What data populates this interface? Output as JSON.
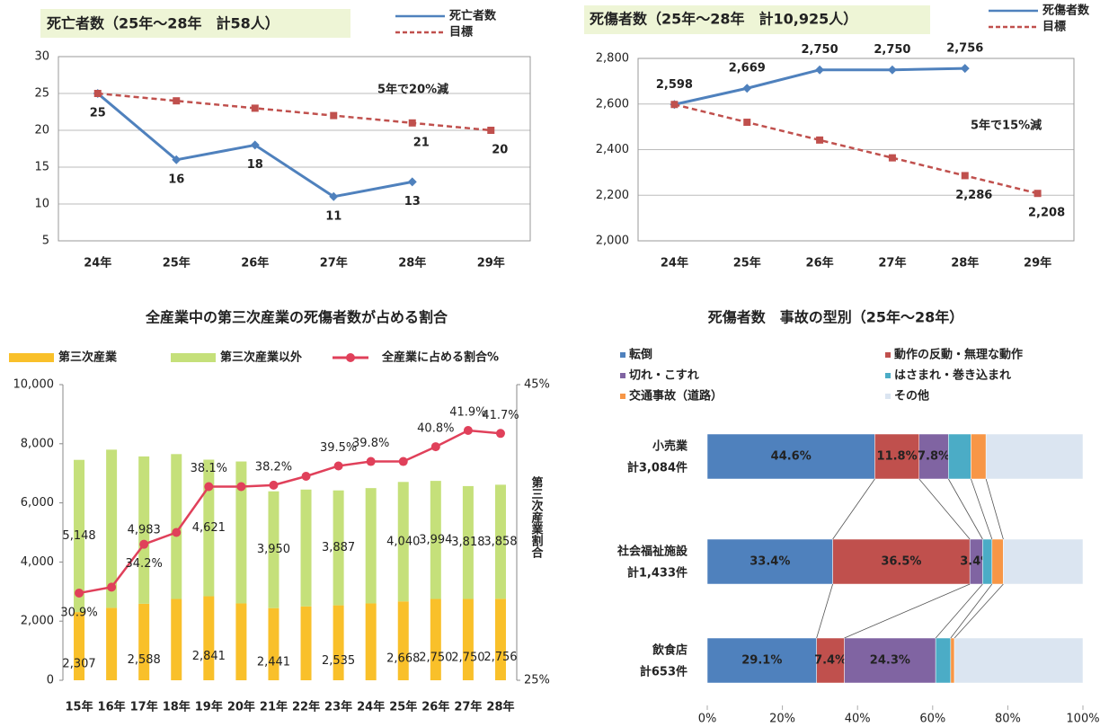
{
  "chart_data": [
    {
      "type": "line",
      "title": "死亡者数（25年～28年　計58人）",
      "categories": [
        "24年",
        "25年",
        "26年",
        "27年",
        "28年",
        "29年"
      ],
      "series": [
        {
          "name": "死亡者数",
          "color": "#4f81bd",
          "values": [
            25,
            16,
            18,
            11,
            13,
            null
          ]
        },
        {
          "name": "目標",
          "color": "#c0504d",
          "dashed": true,
          "values": [
            25,
            24,
            23,
            22,
            21,
            20
          ],
          "value_labels": [
            null,
            null,
            null,
            null,
            "21",
            "20"
          ]
        }
      ],
      "ylim": [
        5,
        30
      ],
      "yticks": [
        5,
        10,
        15,
        20,
        25,
        30
      ],
      "grid": true,
      "annotation": "5年で20%減"
    },
    {
      "type": "line",
      "title": "死傷者数（25年～28年　計10,925人）",
      "categories": [
        "24年",
        "25年",
        "26年",
        "27年",
        "28年",
        "29年"
      ],
      "series": [
        {
          "name": "死傷者数",
          "color": "#4f81bd",
          "values": [
            2598,
            2669,
            2750,
            2750,
            2756,
            null
          ],
          "value_labels": [
            "2,598",
            "2,669",
            "2,750",
            "2,750",
            "2,756",
            null
          ]
        },
        {
          "name": "目標",
          "color": "#c0504d",
          "dashed": true,
          "values": [
            2598,
            2520,
            2442,
            2364,
            2286,
            2208
          ],
          "value_labels": [
            null,
            null,
            null,
            null,
            "2,286",
            "2,208"
          ]
        }
      ],
      "ylim": [
        2000,
        2800
      ],
      "yticks": [
        {
          "value": 2000,
          "label": "2,000"
        },
        {
          "value": 2200,
          "label": "2,200"
        },
        {
          "value": 2400,
          "label": "2,400"
        },
        {
          "value": 2600,
          "label": "2,600"
        },
        {
          "value": 2800,
          "label": "2,800"
        }
      ],
      "grid": true,
      "annotation": "5年で15%減"
    },
    {
      "type": "combo",
      "title": "全産業中の第三次産業の死傷者数が占める割合",
      "categories": [
        "15年",
        "16年",
        "17年",
        "18年",
        "19年",
        "20年",
        "21年",
        "22年",
        "23年",
        "24年",
        "25年",
        "26年",
        "27年",
        "28年"
      ],
      "series": [
        {
          "name": "第三次産業",
          "color": "#f9c02a",
          "values": [
            2307,
            2450,
            2588,
            2750,
            2841,
            2600,
            2441,
            2500,
            2535,
            2600,
            2668,
            2750,
            2750,
            2756
          ],
          "value_labels": [
            "2,307",
            null,
            "2,588",
            null,
            "2,841",
            null,
            "2,441",
            null,
            "2,535",
            null,
            "2,668",
            "2,750",
            "2,750",
            "2,756"
          ]
        },
        {
          "name": "第三次産業以外",
          "color": "#c5e07a",
          "values": [
            5148,
            5350,
            4983,
            4900,
            4621,
            4800,
            3950,
            3950,
            3887,
            3900,
            4040,
            3994,
            3818,
            3858
          ],
          "value_labels": [
            "5,148",
            null,
            "4,983",
            null,
            "4,621",
            null,
            "3,950",
            null,
            "3,887",
            null,
            "4,040",
            "3,994",
            "3,818",
            "3,858"
          ]
        },
        {
          "name": "全産業に占める割合%",
          "color": "#e0405a",
          "axis": "y2",
          "values": [
            30.9,
            31.3,
            34.2,
            35.0,
            38.1,
            38.1,
            38.2,
            38.8,
            39.5,
            39.8,
            39.8,
            40.8,
            41.9,
            41.7
          ],
          "value_labels": [
            "30.9%",
            null,
            "34.2%",
            null,
            "38.1%",
            null,
            "38.2%",
            null,
            "39.5%",
            "39.8%",
            null,
            "40.8%",
            "41.9%",
            "41.7%"
          ]
        }
      ],
      "ylim": [
        0,
        10000
      ],
      "yticks": [
        0,
        {
          "value": 2000,
          "label": "2,000"
        },
        {
          "value": 4000,
          "label": "4,000"
        },
        {
          "value": 6000,
          "label": "6,000"
        },
        {
          "value": 8000,
          "label": "8,000"
        },
        {
          "value": 10000,
          "label": "10,000"
        }
      ],
      "y2lim": [
        25,
        45
      ],
      "y2ticks": [
        {
          "value": 25,
          "label": "25%"
        },
        {
          "value": 45,
          "label": "45%"
        }
      ],
      "y2_label": "第三次産業割合"
    },
    {
      "type": "hbar",
      "title": "死傷者数　事故の型別（25年～28年）",
      "stacked": true,
      "categories": [
        "小売業",
        "社会福祉施設",
        "飲食店"
      ],
      "category_notes": [
        "計3,084件",
        "計1,433件",
        "計653件"
      ],
      "series": [
        {
          "name": "転倒",
          "color": "#4f81bd",
          "values": [
            44.6,
            33.4,
            29.1
          ],
          "value_labels": [
            "44.6%",
            "33.4%",
            "29.1%"
          ]
        },
        {
          "name": "動作の反動・無理な動作",
          "color": "#c0504d",
          "values": [
            11.8,
            36.5,
            7.4
          ],
          "value_labels": [
            "11.8%",
            "36.5%",
            "7.4%"
          ]
        },
        {
          "name": "切れ・こすれ",
          "color": "#8064a2",
          "values": [
            7.8,
            3.4,
            24.3
          ],
          "value_labels": [
            "7.8%",
            "3.4%",
            "24.3%"
          ]
        },
        {
          "name": "はさまれ・巻き込まれ",
          "color": "#4bacc6",
          "values": [
            6,
            2.5,
            4
          ]
        },
        {
          "name": "交通事故（道路）",
          "color": "#f79646",
          "values": [
            4,
            3,
            1
          ]
        },
        {
          "name": "その他",
          "color": "#dbe5f1",
          "values": [
            25.8,
            21.2,
            34.2
          ]
        }
      ],
      "xlim": [
        0,
        100
      ],
      "xticks": [
        {
          "value": 0,
          "label": "0%"
        },
        {
          "value": 20,
          "label": "20%"
        },
        {
          "value": 40,
          "label": "40%"
        },
        {
          "value": 60,
          "label": "60%"
        },
        {
          "value": 80,
          "label": "80%"
        },
        {
          "value": 100,
          "label": "100%"
        }
      ]
    }
  ]
}
